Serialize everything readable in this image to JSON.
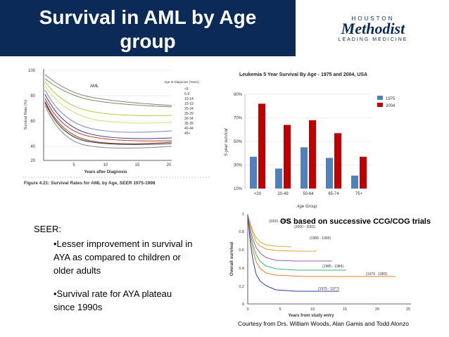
{
  "slide": {
    "title": "Survival in AML by Age group",
    "logo": {
      "top": "HOUSTON",
      "main": "Methodist",
      "sub": "LEADING MEDICINE"
    }
  },
  "seer_box": {
    "heading": "SEER:",
    "bullets": [
      "•Lesser improvement in survival in AYA as compared to children or older adults",
      "•Survival rate  for AYA plateau since 1990s"
    ]
  },
  "os_title": "OS based on successive CCG/COG trials",
  "credit": "Courtesy from Drs. William Woods, Alan Gamis and Todd Alonzo",
  "figures": {
    "aml_curves": {
      "inner_title": "AML",
      "ylabel": "Survival Rate (%)",
      "xlabel": "Years after Diagnosis",
      "yticks": [
        "100",
        "80",
        "60",
        "40",
        "20"
      ],
      "xticks": [
        "5",
        "10",
        "15",
        "20"
      ],
      "legend_title": "Age at Diagnosis (Years)",
      "legend": [
        "<5",
        "5-9",
        "10-14",
        "15-19",
        "20-24",
        "25-29",
        "30-34",
        "35-39",
        "40-44",
        "45+"
      ],
      "caption": "Figure 4.21: Survival Rates for AML by Age, SEER 1975-1998"
    },
    "bar_fig": {
      "title": "Leukemia 5 Year Survival By Age - 1975 and 2004, USA"
    },
    "os_curves": {
      "ylabel": "Overall survival",
      "xlabel": "Years from study entry",
      "labels": [
        "(2003 - 2005)",
        "(2000 - 2002)",
        "(1989 - 1995)",
        "(1985 - 1989)",
        "(1979 - 1983)",
        "(1975 - 1977)"
      ],
      "yticks": [
        "1",
        "0.8",
        "0.6",
        "0.4",
        "0.2",
        "0"
      ],
      "xticks": [
        "0",
        "5",
        "10",
        "15",
        "20",
        "25"
      ]
    }
  },
  "chart_data": {
    "type": "bar",
    "title": "Leukemia 5 Year Survival By Age - 1975 and 2004, USA",
    "xlabel": "Age Group",
    "ylabel": "5-year survival",
    "categories": [
      "<20",
      "20-49",
      "50-64",
      "65-74",
      "75+"
    ],
    "series": [
      {
        "name": "1975",
        "color": "#4f81bd",
        "values": [
          37,
          27,
          45,
          36,
          21
        ]
      },
      {
        "name": "2004",
        "color": "#c00000",
        "values": [
          82,
          64,
          68,
          57,
          37
        ]
      }
    ],
    "ylim": [
      10,
      90
    ],
    "yticks": [
      "10%",
      "30%",
      "50%",
      "70%",
      "90%"
    ],
    "grid": true,
    "legend": "top-right"
  }
}
